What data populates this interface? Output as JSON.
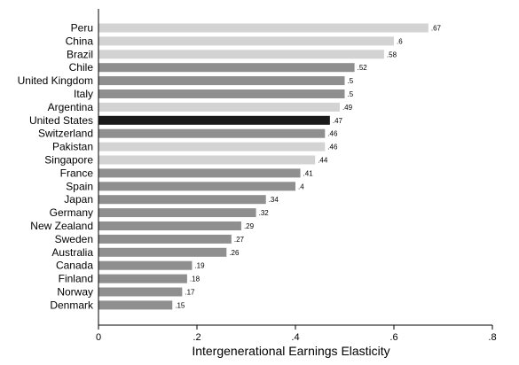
{
  "chart_data": {
    "type": "bar",
    "orientation": "horizontal",
    "xlabel": "Intergenerational Earnings Elasticity",
    "xlim": [
      0,
      0.8
    ],
    "xticks": [
      {
        "value": 0,
        "label": "0"
      },
      {
        "value": 0.2,
        "label": ".2"
      },
      {
        "value": 0.4,
        "label": ".4"
      },
      {
        "value": 0.6,
        "label": ".6"
      },
      {
        "value": 0.8,
        "label": ".8"
      }
    ],
    "grid": false,
    "legend": "none",
    "colors": {
      "light": "#d3d3d3",
      "medium": "#8f8f8f",
      "dark": "#1a1a1a"
    },
    "bars": [
      {
        "category": "Peru",
        "value": 0.67,
        "label": ".67",
        "color": "light"
      },
      {
        "category": "China",
        "value": 0.6,
        "label": ".6",
        "color": "light"
      },
      {
        "category": "Brazil",
        "value": 0.58,
        "label": ".58",
        "color": "light"
      },
      {
        "category": "Chile",
        "value": 0.52,
        "label": ".52",
        "color": "medium"
      },
      {
        "category": "United Kingdom",
        "value": 0.5,
        "label": ".5",
        "color": "medium"
      },
      {
        "category": "Italy",
        "value": 0.5,
        "label": ".5",
        "color": "medium"
      },
      {
        "category": "Argentina",
        "value": 0.49,
        "label": ".49",
        "color": "light"
      },
      {
        "category": "United States",
        "value": 0.47,
        "label": ".47",
        "color": "dark"
      },
      {
        "category": "Switzerland",
        "value": 0.46,
        "label": ".46",
        "color": "medium"
      },
      {
        "category": "Pakistan",
        "value": 0.46,
        "label": ".46",
        "color": "light"
      },
      {
        "category": "Singapore",
        "value": 0.44,
        "label": ".44",
        "color": "light"
      },
      {
        "category": "France",
        "value": 0.41,
        "label": ".41",
        "color": "medium"
      },
      {
        "category": "Spain",
        "value": 0.4,
        "label": ".4",
        "color": "medium"
      },
      {
        "category": "Japan",
        "value": 0.34,
        "label": ".34",
        "color": "medium"
      },
      {
        "category": "Germany",
        "value": 0.32,
        "label": ".32",
        "color": "medium"
      },
      {
        "category": "New Zealand",
        "value": 0.29,
        "label": ".29",
        "color": "medium"
      },
      {
        "category": "Sweden",
        "value": 0.27,
        "label": ".27",
        "color": "medium"
      },
      {
        "category": "Australia",
        "value": 0.26,
        "label": ".26",
        "color": "medium"
      },
      {
        "category": "Canada",
        "value": 0.19,
        "label": ".19",
        "color": "medium"
      },
      {
        "category": "Finland",
        "value": 0.18,
        "label": ".18",
        "color": "medium"
      },
      {
        "category": "Norway",
        "value": 0.17,
        "label": ".17",
        "color": "medium"
      },
      {
        "category": "Denmark",
        "value": 0.15,
        "label": ".15",
        "color": "medium"
      }
    ]
  }
}
